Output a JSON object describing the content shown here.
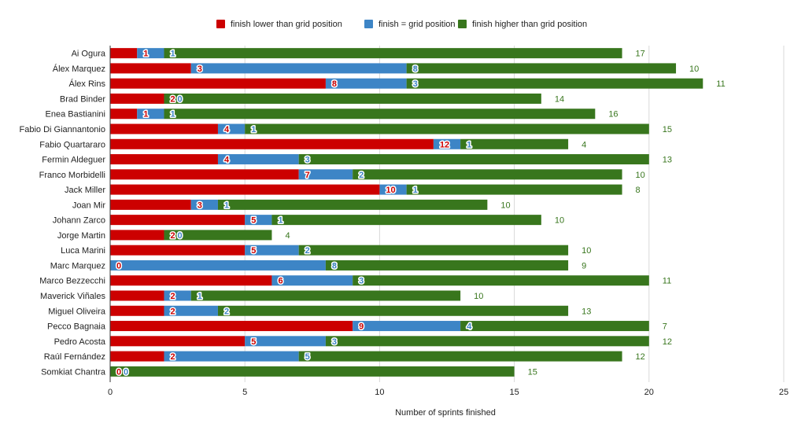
{
  "chart_data": {
    "type": "bar",
    "orientation": "horizontal",
    "stacked": true,
    "title": "",
    "xlabel": "Number of sprints finished",
    "ylabel": "",
    "xlim": [
      0,
      25
    ],
    "xticks": [
      0,
      5,
      10,
      15,
      20,
      25
    ],
    "grid": true,
    "legend_position": "top",
    "categories": [
      "Ai Ogura",
      "Álex Marquez",
      "Álex Rins",
      "Brad Binder",
      "Enea Bastianini",
      "Fabio Di Giannantonio",
      "Fabio Quartararo",
      "Fermin Aldeguer",
      "Franco Morbidelli",
      "Jack Miller",
      "Joan Mir",
      "Johann Zarco",
      "Jorge Martin",
      "Luca Marini",
      "Marc Marquez",
      "Marco Bezzecchi",
      "Maverick Viñales",
      "Miguel Oliveira",
      "Pecco Bagnaia",
      "Pedro Acosta",
      "Raúl Fernández",
      "Somkiat Chantra"
    ],
    "series": [
      {
        "name": "finish lower than grid position",
        "color": "#cc0000",
        "values": [
          1,
          3,
          8,
          2,
          1,
          4,
          12,
          4,
          7,
          10,
          3,
          5,
          2,
          5,
          0,
          6,
          2,
          2,
          9,
          5,
          2,
          0
        ]
      },
      {
        "name": "finish = grid position",
        "color": "#3d85c6",
        "values": [
          1,
          8,
          3,
          0,
          1,
          1,
          1,
          3,
          2,
          1,
          1,
          1,
          0,
          2,
          8,
          3,
          1,
          2,
          4,
          3,
          5,
          0
        ]
      },
      {
        "name": "finish higher than grid position",
        "color": "#38761d",
        "values": [
          17,
          10,
          11,
          14,
          16,
          15,
          4,
          13,
          10,
          8,
          10,
          10,
          4,
          10,
          9,
          11,
          10,
          13,
          7,
          12,
          12,
          15
        ]
      }
    ]
  },
  "colors": {
    "gridline": "#d9d9d9",
    "axis": "#333333",
    "text": "#222222"
  }
}
